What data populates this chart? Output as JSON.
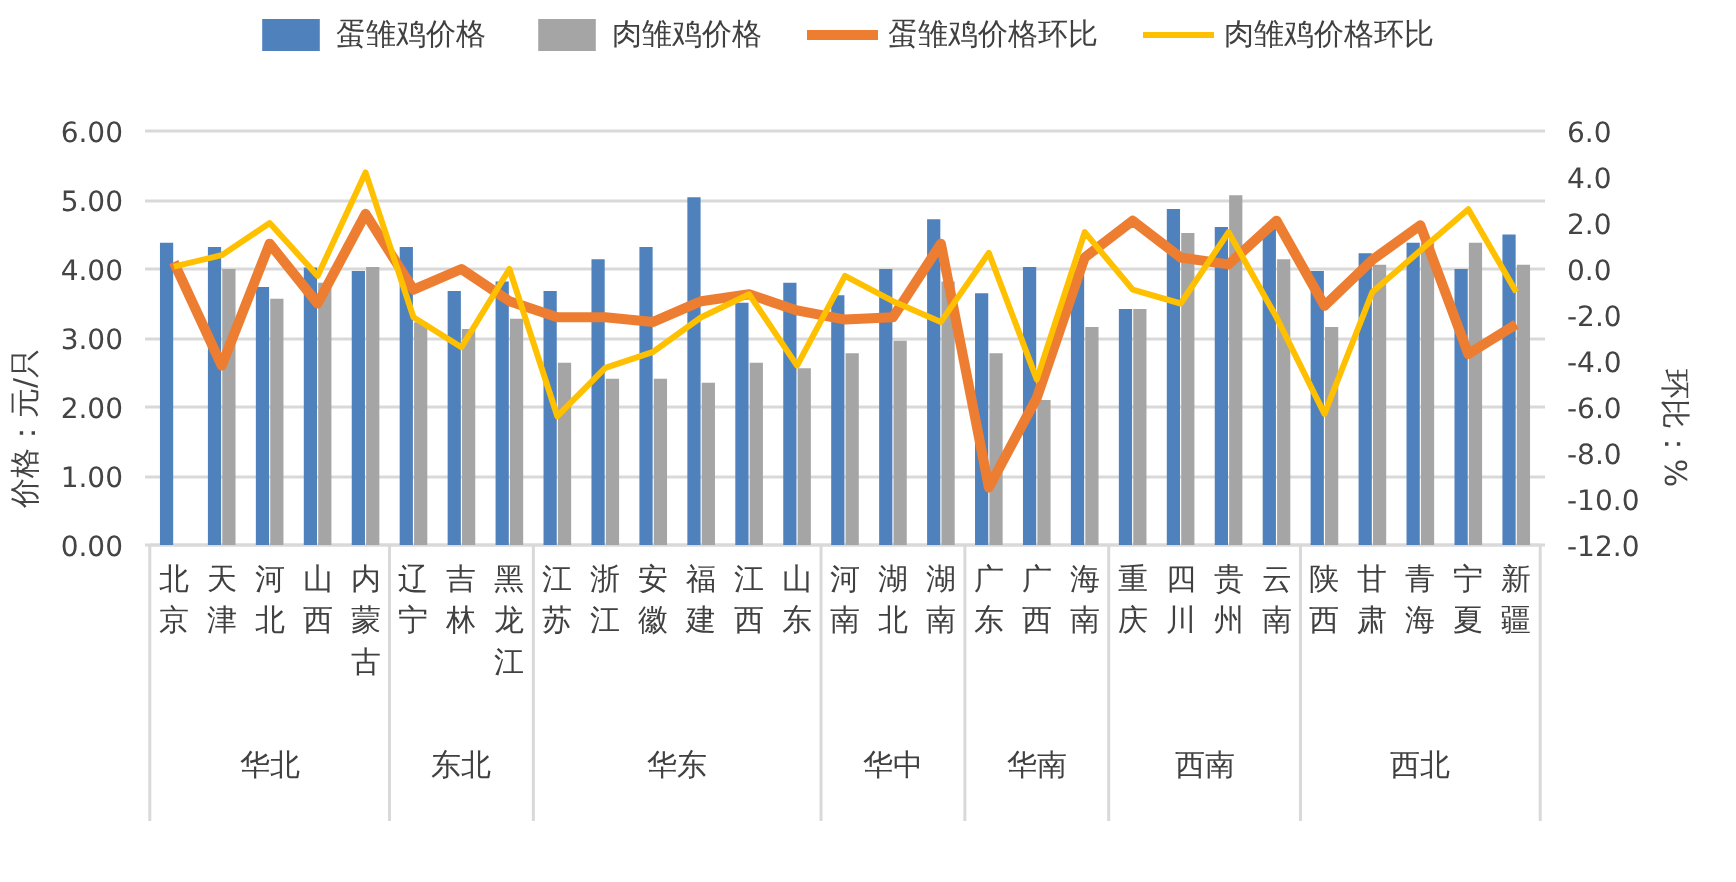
{
  "chart_data": {
    "type": "bar",
    "ylabel": "价格：元/只",
    "y2label": "环比：%",
    "categories": [
      "北京",
      "天津",
      "河北",
      "山西",
      "内蒙古",
      "辽宁",
      "吉林",
      "黑龙江",
      "江苏",
      "浙江",
      "安徽",
      "福建",
      "江西",
      "山东",
      "河南",
      "湖北",
      "湖南",
      "广东",
      "广西",
      "海南",
      "重庆",
      "四川",
      "贵州",
      "云南",
      "陕西",
      "甘肃",
      "青海",
      "宁夏",
      "新疆"
    ],
    "annotations": [
      "华北",
      "东北",
      "华东",
      "华中",
      "华南",
      "西南",
      "西北"
    ],
    "series": [
      {
        "name": "蛋雏鸡价格",
        "color": "#4f81bd",
        "values": [
          4.38,
          4.32,
          3.74,
          4.02,
          3.97,
          4.32,
          3.68,
          3.82,
          3.68,
          4.14,
          4.32,
          5.04,
          3.51,
          3.8,
          3.62,
          4.0,
          4.72,
          3.65,
          4.03,
          3.96,
          3.42,
          4.87,
          4.61,
          4.62,
          3.97,
          4.23,
          4.38,
          4.0,
          4.5
        ]
      },
      {
        "name": "肉雏鸡价格",
        "color": "#a5a5a5",
        "values": [
          null,
          4.0,
          3.57,
          3.8,
          4.03,
          3.23,
          3.13,
          3.28,
          2.64,
          2.41,
          2.41,
          2.35,
          2.64,
          2.56,
          2.78,
          2.96,
          3.82,
          2.78,
          2.1,
          3.16,
          3.42,
          4.52,
          5.07,
          4.14,
          3.16,
          4.06,
          4.38,
          4.38,
          4.06
        ]
      },
      {
        "name": "蛋雏鸡价格环比",
        "type": "line",
        "axis": "y2",
        "color": "#ed7d31",
        "values": [
          0.3,
          -4.2,
          1.1,
          -1.5,
          2.4,
          -0.9,
          0.0,
          -1.4,
          -2.1,
          -2.1,
          -2.3,
          -1.4,
          -1.1,
          -1.8,
          -2.2,
          -2.1,
          1.1,
          -9.5,
          -5.6,
          0.5,
          2.1,
          0.5,
          0.2,
          2.1,
          -1.6,
          0.4,
          1.9,
          -3.7,
          -2.4
        ]
      },
      {
        "name": "肉雏鸡价格环比",
        "type": "line",
        "axis": "y2",
        "color": "#ffc000",
        "values": [
          0.1,
          0.6,
          2.0,
          -0.3,
          4.2,
          -2.1,
          -3.4,
          0.0,
          -6.4,
          -4.3,
          -3.6,
          -2.1,
          -1.1,
          -4.2,
          -0.3,
          -1.4,
          -2.3,
          0.7,
          -4.8,
          1.6,
          -0.9,
          -1.5,
          1.6,
          -2.1,
          -6.3,
          -1.0,
          0.8,
          2.6,
          -1.0
        ]
      }
    ],
    "ylim": [
      0,
      6
    ],
    "yticks": [
      {
        "value": 0,
        "label": "0.00"
      },
      {
        "value": 1,
        "label": "1.00"
      },
      {
        "value": 2,
        "label": "2.00"
      },
      {
        "value": 3,
        "label": "3.00"
      },
      {
        "value": 4,
        "label": "4.00"
      },
      {
        "value": 5,
        "label": "5.00"
      },
      {
        "value": 6,
        "label": "6.00"
      }
    ],
    "y2lim": [
      -12,
      6
    ],
    "y2ticks": [
      {
        "value": 6,
        "label": "6.0"
      },
      {
        "value": 4,
        "label": "4.0"
      },
      {
        "value": 2,
        "label": "2.0"
      },
      {
        "value": 0,
        "label": "0.0"
      },
      {
        "value": -2,
        "label": "-2.0"
      },
      {
        "value": -4,
        "label": "-4.0"
      },
      {
        "value": -6,
        "label": "-6.0"
      },
      {
        "value": -8,
        "label": "-8.0"
      },
      {
        "value": -10,
        "label": "-10.0"
      },
      {
        "value": -12,
        "label": "-12.0"
      }
    ],
    "grid": "y",
    "legend": "top"
  }
}
